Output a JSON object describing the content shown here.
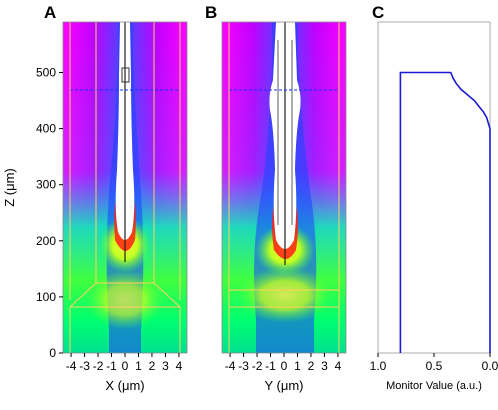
{
  "panels": {
    "a": "A",
    "b": "B",
    "c": "C"
  },
  "chart_data": [
    {
      "type": "heatmap",
      "panel": "A",
      "xlabel": "X (μm)",
      "ylabel": "Z (μm)",
      "xticks": [
        "-4",
        "-3",
        "-2",
        "-1",
        "0",
        "1",
        "2",
        "3",
        "4"
      ],
      "yticks": [
        "0",
        "100",
        "200",
        "300",
        "400",
        "500"
      ],
      "xlim": [
        -4.6,
        4.6
      ],
      "ylim": [
        0,
        590
      ],
      "colormap": [
        "#ff00ff",
        "#0000ff",
        "#00ffff",
        "#00ff00",
        "#ffff00",
        "#ff0000",
        "#ffffff"
      ],
      "guide_lines_x": [
        -3.5,
        -2.0,
        2.0,
        3.5
      ],
      "guide_lines_color": "#ffd060"
    },
    {
      "type": "heatmap",
      "panel": "B",
      "xlabel": "Y (μm)",
      "xticks": [
        "-4",
        "-3",
        "-2",
        "-1",
        "0",
        "1",
        "2",
        "3",
        "4"
      ],
      "xlim": [
        -4.6,
        4.6
      ],
      "ylim": [
        0,
        590
      ],
      "guide_lines_x": [
        -3.5,
        3.5
      ],
      "guide_lines_color": "#ffd060"
    },
    {
      "type": "line",
      "panel": "C",
      "xlabel": "Monitor Value (a.u.)",
      "xticks": [
        "1.0",
        "0.5",
        "0.0"
      ],
      "xlim": [
        1.0,
        0.0
      ],
      "ylim": [
        0,
        590
      ],
      "line_color": "#1a1ad6",
      "series": [
        {
          "x": [
            0.8,
            0.8,
            0.8,
            0.8,
            0.35,
            0.33,
            0.3,
            0.26,
            0.2,
            0.14,
            0.1,
            0.06,
            0.03,
            0.0,
            0.0,
            0.0
          ],
          "y": [
            0,
            250,
            497,
            500,
            500,
            490,
            480,
            470,
            460,
            450,
            440,
            430,
            420,
            400,
            300,
            0
          ]
        }
      ]
    }
  ]
}
